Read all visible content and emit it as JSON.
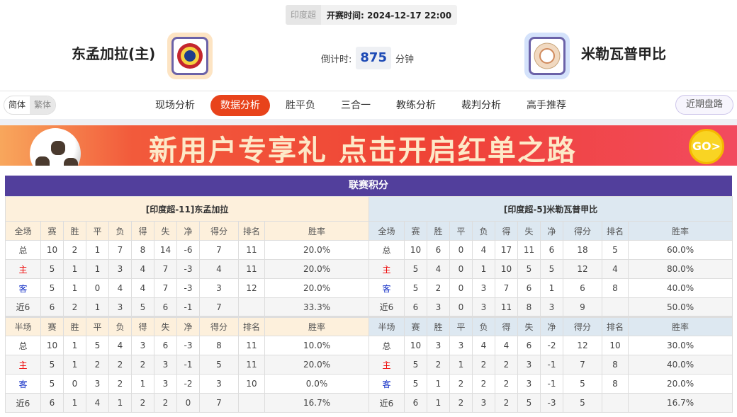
{
  "match": {
    "league": "印度超",
    "start_label": "开赛时间:",
    "start_time": "2024-12-17 22:00",
    "home_team": "东孟加拉(主)",
    "away_team": "米勒瓦普甲比",
    "countdown_label": "倒计时:",
    "countdown_value": "875",
    "countdown_unit": "分钟"
  },
  "nav": {
    "lang": [
      "简体",
      "繁体"
    ],
    "tabs": [
      "现场分析",
      "数据分析",
      "胜平负",
      "三合一",
      "教练分析",
      "裁判分析",
      "高手推荐"
    ],
    "active_tab": 1,
    "odds_button": "近期盘路"
  },
  "banner": {
    "text": "新用户专享礼 点击开启红单之路",
    "go": "GO>"
  },
  "colors": {
    "accent": "#e8431b",
    "title_bar": "#523f9c",
    "home_bg": "#fdf0dc",
    "away_bg": "#dde8f1"
  },
  "standings": {
    "title": "联赛积分",
    "columns_full": [
      "全场",
      "赛",
      "胜",
      "平",
      "负",
      "得",
      "失",
      "净",
      "得分",
      "排名",
      "胜率"
    ],
    "columns_half": [
      "半场",
      "赛",
      "胜",
      "平",
      "负",
      "得",
      "失",
      "净",
      "得分",
      "排名",
      "胜率"
    ],
    "home": {
      "label": "[印度超-11]东孟加拉",
      "full": [
        [
          "总",
          "10",
          "2",
          "1",
          "7",
          "8",
          "14",
          "-6",
          "7",
          "11",
          "20.0%"
        ],
        [
          "主",
          "5",
          "1",
          "1",
          "3",
          "4",
          "7",
          "-3",
          "4",
          "11",
          "20.0%"
        ],
        [
          "客",
          "5",
          "1",
          "0",
          "4",
          "4",
          "7",
          "-3",
          "3",
          "12",
          "20.0%"
        ],
        [
          "近6",
          "6",
          "2",
          "1",
          "3",
          "5",
          "6",
          "-1",
          "7",
          "",
          "33.3%"
        ]
      ],
      "half": [
        [
          "总",
          "10",
          "1",
          "5",
          "4",
          "3",
          "6",
          "-3",
          "8",
          "11",
          "10.0%"
        ],
        [
          "主",
          "5",
          "1",
          "2",
          "2",
          "2",
          "3",
          "-1",
          "5",
          "11",
          "20.0%"
        ],
        [
          "客",
          "5",
          "0",
          "3",
          "2",
          "1",
          "3",
          "-2",
          "3",
          "10",
          "0.0%"
        ],
        [
          "近6",
          "6",
          "1",
          "4",
          "1",
          "2",
          "2",
          "0",
          "7",
          "",
          "16.7%"
        ]
      ]
    },
    "away": {
      "label": "[印度超-5]米勒瓦普甲比",
      "full": [
        [
          "总",
          "10",
          "6",
          "0",
          "4",
          "17",
          "11",
          "6",
          "18",
          "5",
          "60.0%"
        ],
        [
          "主",
          "5",
          "4",
          "0",
          "1",
          "10",
          "5",
          "5",
          "12",
          "4",
          "80.0%"
        ],
        [
          "客",
          "5",
          "2",
          "0",
          "3",
          "7",
          "6",
          "1",
          "6",
          "8",
          "40.0%"
        ],
        [
          "近6",
          "6",
          "3",
          "0",
          "3",
          "11",
          "8",
          "3",
          "9",
          "",
          "50.0%"
        ]
      ],
      "half": [
        [
          "总",
          "10",
          "3",
          "3",
          "4",
          "4",
          "6",
          "-2",
          "12",
          "10",
          "30.0%"
        ],
        [
          "主",
          "5",
          "2",
          "1",
          "2",
          "2",
          "3",
          "-1",
          "7",
          "8",
          "40.0%"
        ],
        [
          "客",
          "5",
          "1",
          "2",
          "2",
          "2",
          "3",
          "-1",
          "5",
          "8",
          "20.0%"
        ],
        [
          "近6",
          "6",
          "1",
          "2",
          "3",
          "2",
          "5",
          "-3",
          "5",
          "",
          "16.7%"
        ]
      ]
    }
  }
}
